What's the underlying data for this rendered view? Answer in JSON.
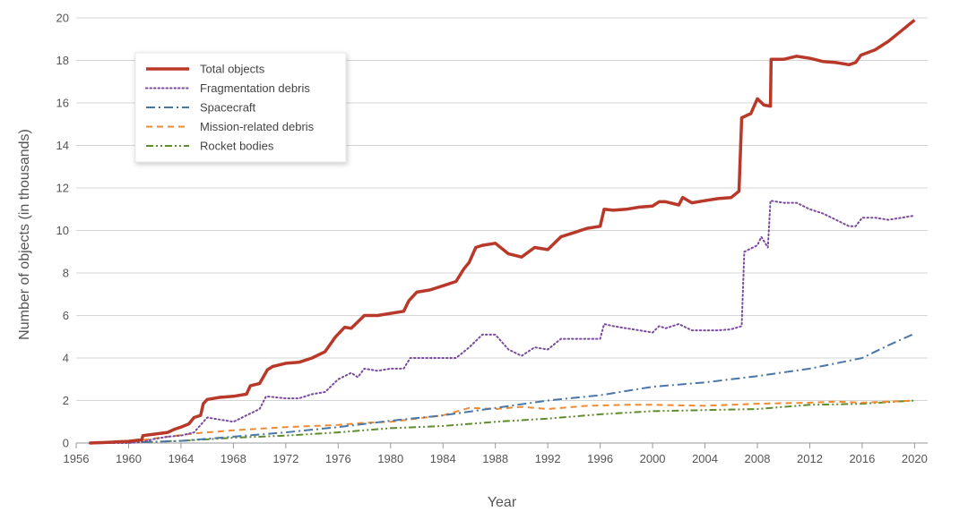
{
  "chart_data": {
    "type": "line",
    "title": "",
    "xlabel": "Year",
    "ylabel": "Number of objects (in thousands)",
    "xlim": [
      1956,
      2021
    ],
    "ylim": [
      0,
      20
    ],
    "x_ticks": [
      "1956",
      "1960",
      "1964",
      "1968",
      "1972",
      "1976",
      "1980",
      "1984",
      "1988",
      "1992",
      "1996",
      "2000",
      "2004",
      "2008",
      "2012",
      "2016",
      "2020"
    ],
    "y_ticks": [
      "0",
      "2",
      "4",
      "6",
      "8",
      "10",
      "12",
      "14",
      "16",
      "18",
      "20"
    ],
    "grid": "horizontal",
    "legend_position": "top-left",
    "series": [
      {
        "name": "Total objects",
        "color": "#b8392a",
        "style": "solid",
        "points": [
          [
            1957,
            0
          ],
          [
            1958,
            0.02
          ],
          [
            1959,
            0.05
          ],
          [
            1960,
            0.08
          ],
          [
            1961,
            0.15
          ],
          [
            1961.1,
            0.35
          ],
          [
            1962,
            0.42
          ],
          [
            1963,
            0.5
          ],
          [
            1963.5,
            0.65
          ],
          [
            1964,
            0.75
          ],
          [
            1964.6,
            0.9
          ],
          [
            1965,
            1.2
          ],
          [
            1965.5,
            1.3
          ],
          [
            1965.7,
            1.85
          ],
          [
            1966,
            2.05
          ],
          [
            1967,
            2.15
          ],
          [
            1968,
            2.2
          ],
          [
            1969,
            2.3
          ],
          [
            1969.3,
            2.7
          ],
          [
            1970,
            2.8
          ],
          [
            1970.6,
            3.45
          ],
          [
            1971,
            3.6
          ],
          [
            1972,
            3.75
          ],
          [
            1973,
            3.8
          ],
          [
            1974,
            4.0
          ],
          [
            1975,
            4.3
          ],
          [
            1975.8,
            5.0
          ],
          [
            1976.5,
            5.45
          ],
          [
            1977,
            5.4
          ],
          [
            1978,
            6.0
          ],
          [
            1979,
            6.0
          ],
          [
            1980,
            6.1
          ],
          [
            1981,
            6.2
          ],
          [
            1981.4,
            6.7
          ],
          [
            1982,
            7.1
          ],
          [
            1983,
            7.2
          ],
          [
            1984,
            7.4
          ],
          [
            1985,
            7.6
          ],
          [
            1985.6,
            8.2
          ],
          [
            1986,
            8.5
          ],
          [
            1986.5,
            9.2
          ],
          [
            1987,
            9.3
          ],
          [
            1988,
            9.4
          ],
          [
            1989,
            8.9
          ],
          [
            1990,
            8.75
          ],
          [
            1991,
            9.2
          ],
          [
            1992,
            9.1
          ],
          [
            1993,
            9.7
          ],
          [
            1994,
            9.9
          ],
          [
            1995,
            10.1
          ],
          [
            1996,
            10.2
          ],
          [
            1996.3,
            11.0
          ],
          [
            1997,
            10.95
          ],
          [
            1998,
            11.0
          ],
          [
            1999,
            11.1
          ],
          [
            2000,
            11.15
          ],
          [
            2000.5,
            11.35
          ],
          [
            2001,
            11.35
          ],
          [
            2002,
            11.2
          ],
          [
            2002.3,
            11.55
          ],
          [
            2003,
            11.3
          ],
          [
            2004,
            11.4
          ],
          [
            2005,
            11.5
          ],
          [
            2006,
            11.55
          ],
          [
            2006.6,
            11.85
          ],
          [
            2006.8,
            15.3
          ],
          [
            2007.5,
            15.5
          ],
          [
            2008,
            16.2
          ],
          [
            2008.5,
            15.9
          ],
          [
            2009,
            15.85
          ],
          [
            2009.05,
            18.05
          ],
          [
            2010,
            18.05
          ],
          [
            2011,
            18.2
          ],
          [
            2012,
            18.1
          ],
          [
            2013,
            17.95
          ],
          [
            2014,
            17.9
          ],
          [
            2015,
            17.8
          ],
          [
            2015.5,
            17.9
          ],
          [
            2015.9,
            18.25
          ],
          [
            2017,
            18.5
          ],
          [
            2018,
            18.9
          ],
          [
            2019,
            19.4
          ],
          [
            2020,
            19.9
          ]
        ]
      },
      {
        "name": "Fragmentation debris",
        "color": "#7a4a9e",
        "style": "dotted",
        "points": [
          [
            1957,
            0
          ],
          [
            1960,
            0
          ],
          [
            1961,
            0.05
          ],
          [
            1962,
            0.2
          ],
          [
            1963,
            0.3
          ],
          [
            1964,
            0.35
          ],
          [
            1965,
            0.5
          ],
          [
            1966,
            1.2
          ],
          [
            1967,
            1.1
          ],
          [
            1968,
            1.0
          ],
          [
            1969,
            1.3
          ],
          [
            1970,
            1.6
          ],
          [
            1970.5,
            2.2
          ],
          [
            1972,
            2.1
          ],
          [
            1973,
            2.1
          ],
          [
            1974,
            2.3
          ],
          [
            1975,
            2.4
          ],
          [
            1976,
            3.0
          ],
          [
            1977,
            3.3
          ],
          [
            1977.5,
            3.1
          ],
          [
            1978,
            3.5
          ],
          [
            1979,
            3.4
          ],
          [
            1980,
            3.5
          ],
          [
            1981,
            3.5
          ],
          [
            1981.5,
            4.0
          ],
          [
            1983,
            4.0
          ],
          [
            1984,
            4.0
          ],
          [
            1985,
            4.0
          ],
          [
            1986,
            4.5
          ],
          [
            1987,
            5.1
          ],
          [
            1988,
            5.1
          ],
          [
            1989,
            4.4
          ],
          [
            1990,
            4.1
          ],
          [
            1991,
            4.5
          ],
          [
            1992,
            4.4
          ],
          [
            1993,
            4.9
          ],
          [
            1994,
            4.9
          ],
          [
            1995,
            4.9
          ],
          [
            1996,
            4.9
          ],
          [
            1996.3,
            5.6
          ],
          [
            1997,
            5.5
          ],
          [
            1998,
            5.4
          ],
          [
            1999,
            5.3
          ],
          [
            2000,
            5.2
          ],
          [
            2000.5,
            5.5
          ],
          [
            2001,
            5.4
          ],
          [
            2002,
            5.6
          ],
          [
            2003,
            5.3
          ],
          [
            2004,
            5.3
          ],
          [
            2005,
            5.3
          ],
          [
            2006,
            5.35
          ],
          [
            2006.8,
            5.5
          ],
          [
            2007,
            9.0
          ],
          [
            2008,
            9.3
          ],
          [
            2008.3,
            9.7
          ],
          [
            2008.8,
            9.2
          ],
          [
            2009,
            11.4
          ],
          [
            2010,
            11.3
          ],
          [
            2011,
            11.3
          ],
          [
            2012,
            11.0
          ],
          [
            2013,
            10.8
          ],
          [
            2014,
            10.5
          ],
          [
            2015,
            10.2
          ],
          [
            2015.5,
            10.2
          ],
          [
            2016,
            10.6
          ],
          [
            2017,
            10.6
          ],
          [
            2018,
            10.5
          ],
          [
            2019,
            10.6
          ],
          [
            2020,
            10.7
          ]
        ]
      },
      {
        "name": "Spacecraft",
        "color": "#4a76a8",
        "style": "dashdot",
        "points": [
          [
            1957,
            0
          ],
          [
            1960,
            0.02
          ],
          [
            1964,
            0.1
          ],
          [
            1968,
            0.3
          ],
          [
            1972,
            0.5
          ],
          [
            1976,
            0.75
          ],
          [
            1980,
            1.05
          ],
          [
            1984,
            1.3
          ],
          [
            1988,
            1.65
          ],
          [
            1992,
            2.0
          ],
          [
            1996,
            2.25
          ],
          [
            2000,
            2.65
          ],
          [
            2004,
            2.85
          ],
          [
            2008,
            3.15
          ],
          [
            2012,
            3.5
          ],
          [
            2016,
            4.0
          ],
          [
            2018,
            4.6
          ],
          [
            2020,
            5.15
          ]
        ]
      },
      {
        "name": "Mission-related debris",
        "color": "#f28a2e",
        "style": "dashed",
        "points": [
          [
            1957,
            0
          ],
          [
            1960,
            0.05
          ],
          [
            1963,
            0.3
          ],
          [
            1965,
            0.45
          ],
          [
            1968,
            0.6
          ],
          [
            1972,
            0.75
          ],
          [
            1976,
            0.85
          ],
          [
            1978,
            0.95
          ],
          [
            1980,
            1.0
          ],
          [
            1984,
            1.3
          ],
          [
            1986,
            1.65
          ],
          [
            1988,
            1.6
          ],
          [
            1990,
            1.7
          ],
          [
            1992,
            1.6
          ],
          [
            1995,
            1.75
          ],
          [
            1998,
            1.8
          ],
          [
            2000,
            1.8
          ],
          [
            2004,
            1.75
          ],
          [
            2008,
            1.85
          ],
          [
            2012,
            1.9
          ],
          [
            2014,
            1.95
          ],
          [
            2016,
            1.9
          ],
          [
            2018,
            1.95
          ],
          [
            2020,
            2.0
          ]
        ]
      },
      {
        "name": "Rocket bodies",
        "color": "#5e8c2e",
        "style": "dashdotdot",
        "points": [
          [
            1957,
            0
          ],
          [
            1960,
            0.02
          ],
          [
            1964,
            0.1
          ],
          [
            1968,
            0.25
          ],
          [
            1972,
            0.35
          ],
          [
            1976,
            0.5
          ],
          [
            1980,
            0.7
          ],
          [
            1984,
            0.8
          ],
          [
            1988,
            1.0
          ],
          [
            1992,
            1.15
          ],
          [
            1996,
            1.35
          ],
          [
            2000,
            1.5
          ],
          [
            2004,
            1.55
          ],
          [
            2008,
            1.6
          ],
          [
            2012,
            1.8
          ],
          [
            2016,
            1.85
          ],
          [
            2020,
            2.0
          ]
        ]
      }
    ]
  }
}
